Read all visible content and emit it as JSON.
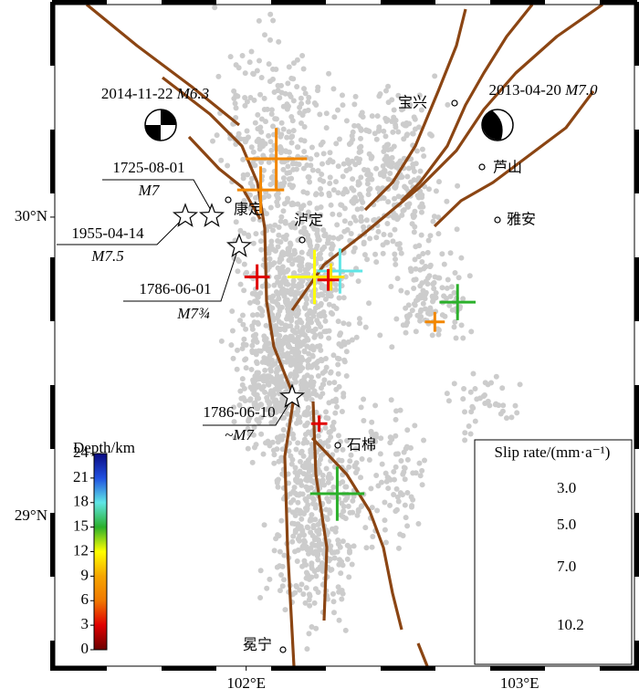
{
  "map": {
    "xlim": [
      101.3,
      103.42
    ],
    "ylim": [
      28.5,
      30.71
    ],
    "xticks": [
      {
        "value": 102,
        "label": "102°E"
      },
      {
        "value": 103,
        "label": "103°E"
      }
    ],
    "yticks": [
      {
        "value": 30,
        "label": "30°N"
      },
      {
        "value": 29,
        "label": "29°N"
      }
    ],
    "places": [
      "宝兴",
      "芦山",
      "康定",
      "泸定",
      "雅安",
      "石棉",
      "冕宁"
    ],
    "events": [
      {
        "date": "2014-11-22",
        "mag": "M6.3"
      },
      {
        "date": "2013-04-20",
        "mag": "M7.0"
      },
      {
        "date": "1725-08-01",
        "mag": "M7"
      },
      {
        "date": "1955-04-14",
        "mag": "M7.5"
      },
      {
        "date": "1786-06-01",
        "mag": "M7¾"
      },
      {
        "date": "1786-06-10",
        "mag": "~M7"
      }
    ],
    "colorbar": {
      "title": "Depth/km",
      "lim": [
        0,
        24
      ],
      "ticks": [
        0,
        3,
        6,
        9,
        12,
        15,
        18,
        21,
        24
      ],
      "colors": [
        "#6b0000",
        "#e00000",
        "#f07800",
        "#f5a500",
        "#ffff00",
        "#2bb02b",
        "#5fe6e6",
        "#2050e0",
        "#0a0a80"
      ]
    },
    "slip_rates": {
      "lon": [
        102.11,
        102.053,
        102.04,
        102.25,
        102.343,
        102.31,
        102.3,
        102.773,
        102.69,
        102.267,
        102.333
      ],
      "lat": [
        30.195,
        30.091,
        29.8,
        29.8,
        29.82,
        29.8,
        29.79,
        29.716,
        29.65,
        29.31,
        29.076
      ],
      "rate": [
        10.2,
        7.8,
        4.2,
        9,
        7.5,
        4.5,
        3.6,
        6,
        3.3,
        2.7,
        9
      ],
      "depth": [
        7,
        7,
        3,
        12,
        18,
        11,
        3,
        15,
        7,
        3,
        15
      ]
    },
    "legend": {
      "title": "Slip rate/(mm·a⁻¹)",
      "values": [
        {
          "value": 3,
          "label": "3.0"
        },
        {
          "value": 5,
          "label": "5.0"
        },
        {
          "value": 7,
          "label": "7.0"
        },
        {
          "value": 10.2,
          "label": "10.2"
        }
      ]
    }
  }
}
